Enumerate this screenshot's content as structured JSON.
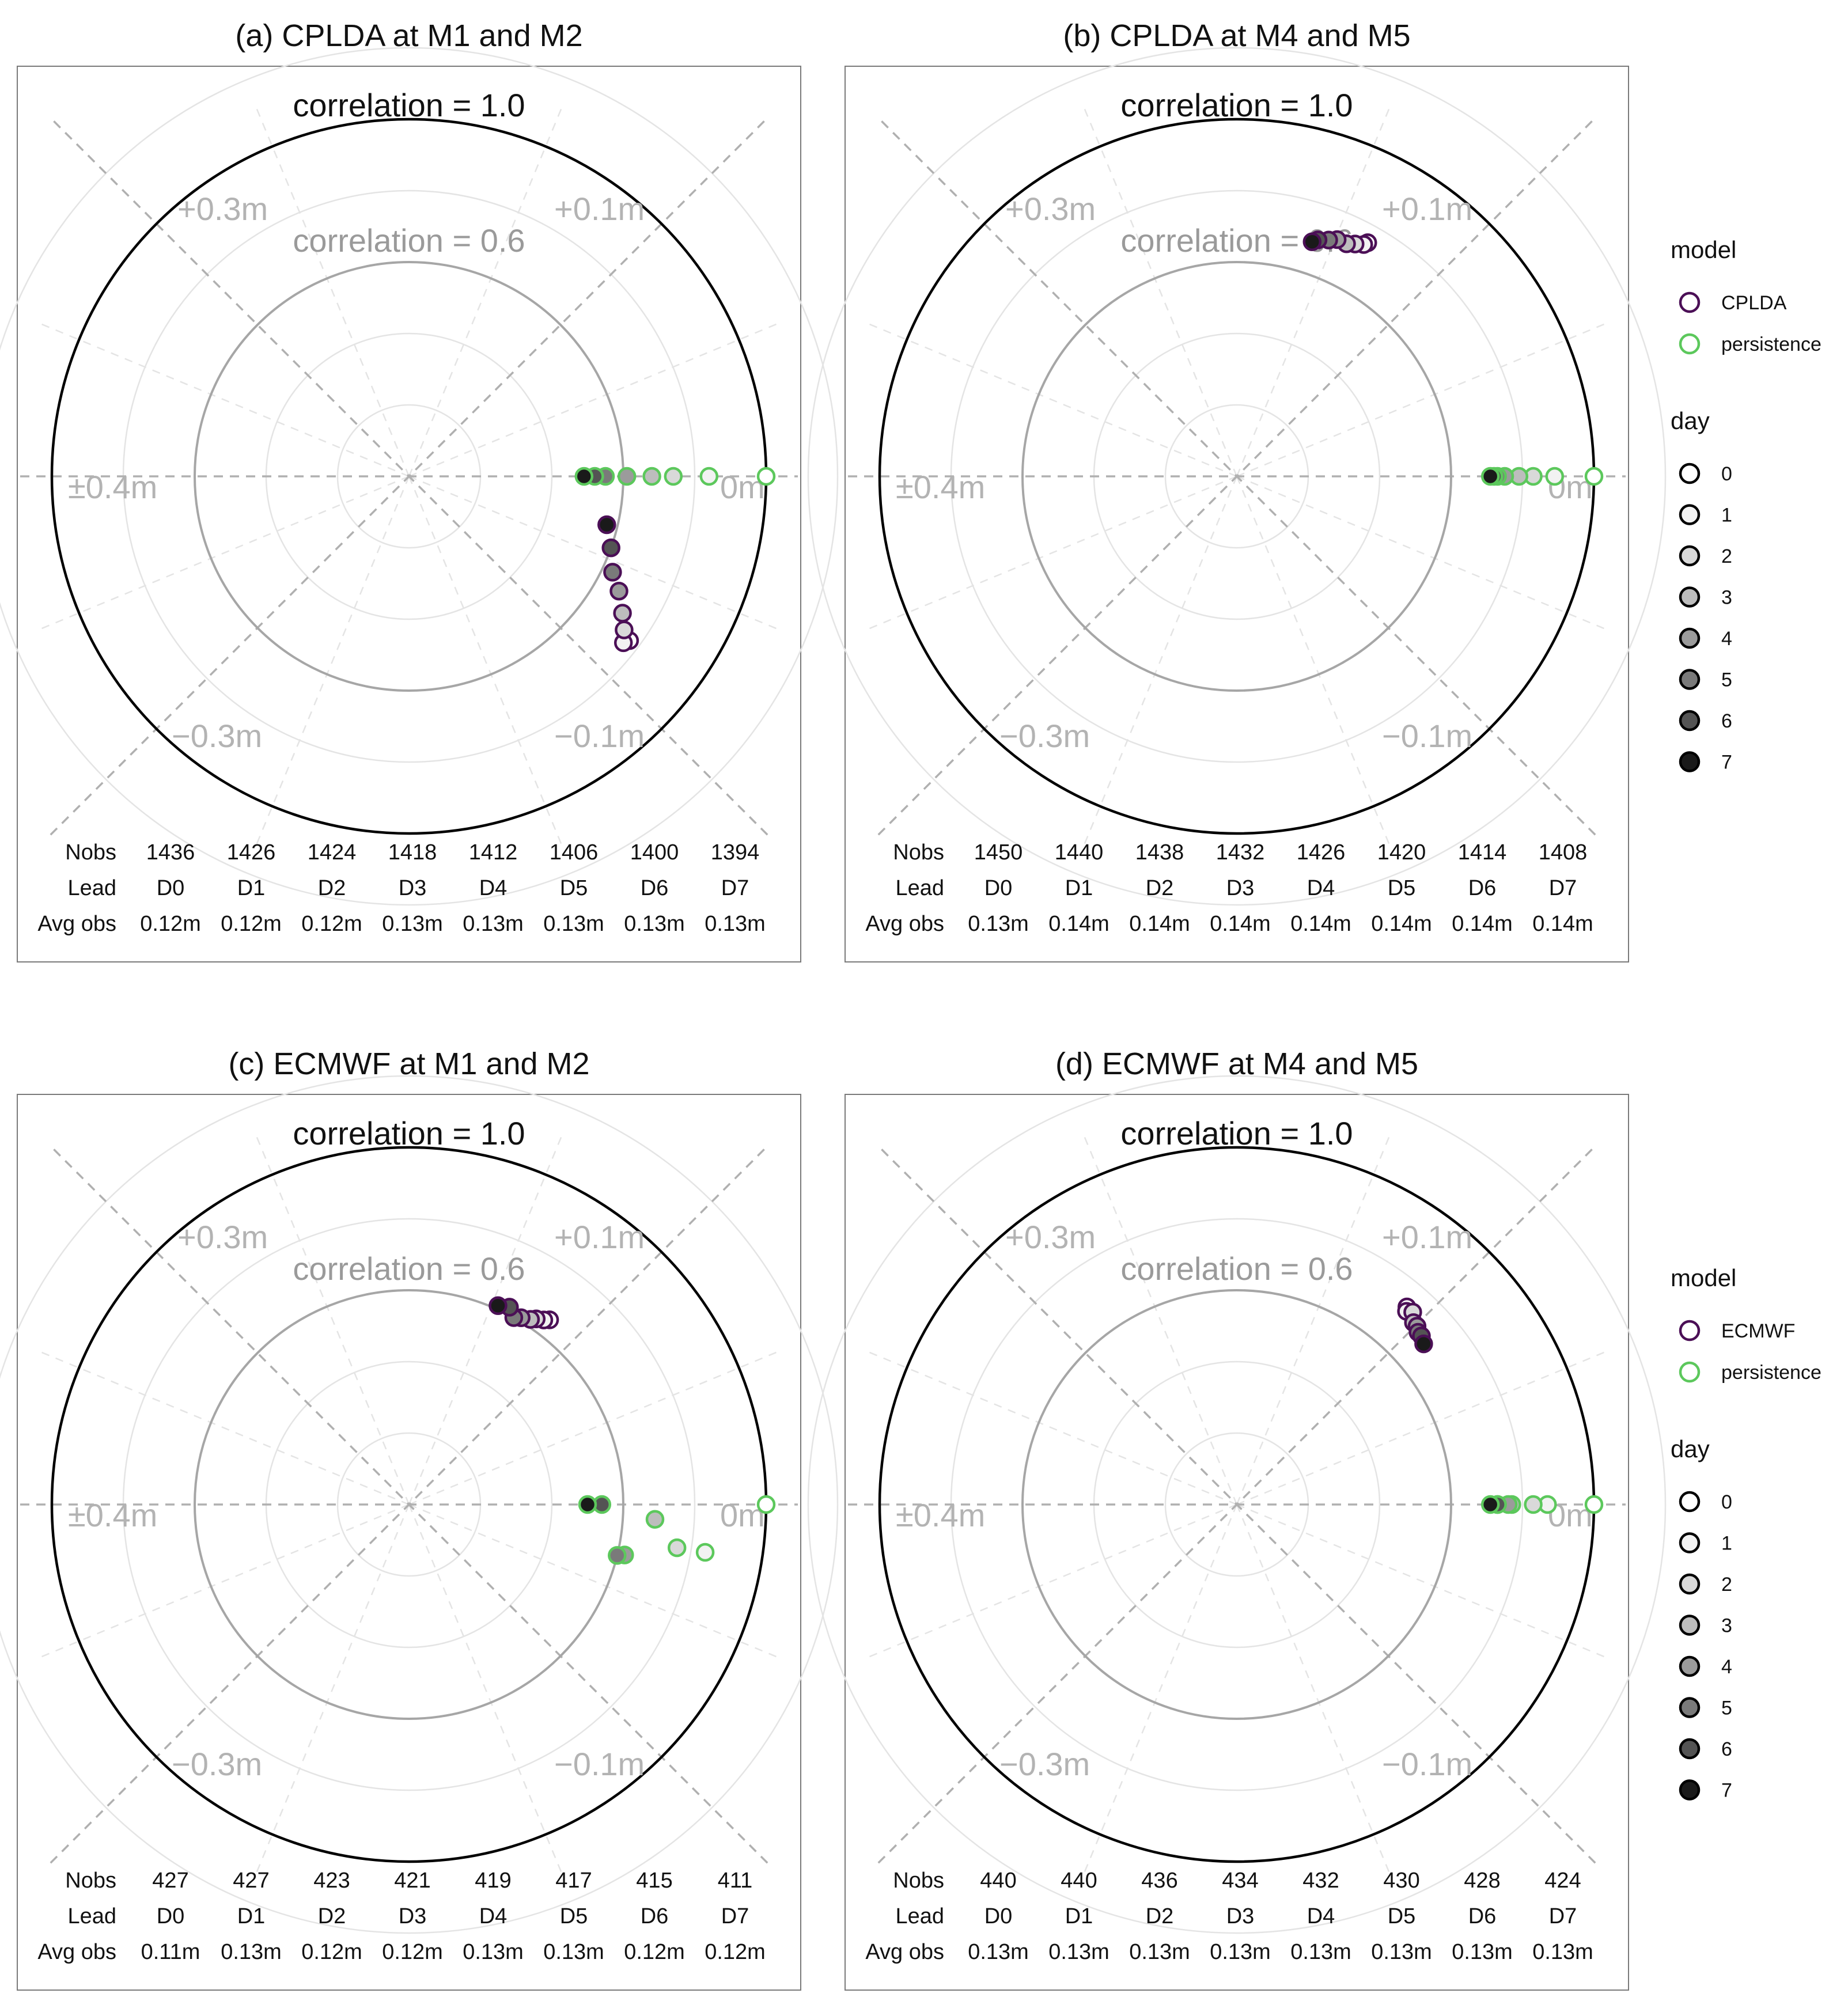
{
  "colors": {
    "model": "#4b0f56",
    "persistence": "#5cc85c",
    "grid": "#e4e4e4",
    "spoke": "#b0b0b0",
    "ring06": "#a6a6a6",
    "ring10": "#000000"
  },
  "chart_data": [
    {
      "type": "scatter",
      "polar": true,
      "title": "(a) CPLDA at M1 and M2",
      "corr1_label": "correlation = 1.0",
      "corr06_label": "correlation = 0.6",
      "bias_labels": {
        "tl": "+0.3m",
        "tr": "+0.1m",
        "l": "±0.4m",
        "r": "0m",
        "bl": "−0.3m",
        "br": "−0.1m"
      },
      "table_headers": [
        "Nobs",
        "Lead",
        "Avg obs"
      ],
      "nobs": [
        "1436",
        "1426",
        "1424",
        "1418",
        "1412",
        "1406",
        "1400",
        "1394"
      ],
      "lead": [
        "D0",
        "D1",
        "D2",
        "D3",
        "D4",
        "D5",
        "D6",
        "D7"
      ],
      "avg_obs": [
        "0.12m",
        "0.12m",
        "0.12m",
        "0.13m",
        "0.13m",
        "0.13m",
        "0.13m",
        "0.13m"
      ],
      "series": [
        {
          "name": "CPLDA",
          "key": "model",
          "points": [
            {
              "day": 0,
              "r": 0.77,
              "angle": -0.64
            },
            {
              "day": 1,
              "r": 0.76,
              "angle": -0.66
            },
            {
              "day": 2,
              "r": 0.74,
              "angle": -0.62
            },
            {
              "day": 3,
              "r": 0.71,
              "angle": -0.57
            },
            {
              "day": 4,
              "r": 0.67,
              "angle": -0.5
            },
            {
              "day": 5,
              "r": 0.63,
              "angle": -0.44
            },
            {
              "day": 6,
              "r": 0.6,
              "angle": -0.34
            },
            {
              "day": 7,
              "r": 0.57,
              "angle": -0.24
            }
          ]
        },
        {
          "name": "persistence",
          "key": "persistence",
          "points": [
            {
              "day": 0,
              "r": 1.0,
              "angle": 0.0
            },
            {
              "day": 1,
              "r": 0.84,
              "angle": 0.0
            },
            {
              "day": 2,
              "r": 0.74,
              "angle": 0.0
            },
            {
              "day": 3,
              "r": 0.68,
              "angle": 0.0
            },
            {
              "day": 4,
              "r": 0.61,
              "angle": 0.0
            },
            {
              "day": 5,
              "r": 0.55,
              "angle": 0.0
            },
            {
              "day": 6,
              "r": 0.52,
              "angle": 0.0
            },
            {
              "day": 7,
              "r": 0.49,
              "angle": 0.0
            }
          ]
        }
      ]
    },
    {
      "type": "scatter",
      "polar": true,
      "title": "(b) CPLDA at M4 and M5",
      "corr1_label": "correlation = 1.0",
      "corr06_label": "correlation = 0.6",
      "bias_labels": {
        "tl": "+0.3m",
        "tr": "+0.1m",
        "l": "±0.4m",
        "r": "0m",
        "bl": "−0.3m",
        "br": "−0.1m"
      },
      "table_headers": [
        "Nobs",
        "Lead",
        "Avg obs"
      ],
      "nobs": [
        "1450",
        "1440",
        "1438",
        "1432",
        "1426",
        "1420",
        "1414",
        "1408"
      ],
      "lead": [
        "D0",
        "D1",
        "D2",
        "D3",
        "D4",
        "D5",
        "D6",
        "D7"
      ],
      "avg_obs": [
        "0.13m",
        "0.14m",
        "0.14m",
        "0.14m",
        "0.14m",
        "0.14m",
        "0.14m",
        "0.14m"
      ],
      "series": [
        {
          "name": "CPLDA",
          "key": "model",
          "points": [
            {
              "day": 0,
              "r": 0.75,
              "angle": 1.06
            },
            {
              "day": 1,
              "r": 0.74,
              "angle": 1.07
            },
            {
              "day": 2,
              "r": 0.73,
              "angle": 1.1
            },
            {
              "day": 3,
              "r": 0.72,
              "angle": 1.13
            },
            {
              "day": 4,
              "r": 0.72,
              "angle": 1.17
            },
            {
              "day": 5,
              "r": 0.71,
              "angle": 1.2
            },
            {
              "day": 6,
              "r": 0.7,
              "angle": 1.24
            },
            {
              "day": 7,
              "r": 0.69,
              "angle": 1.26
            }
          ]
        },
        {
          "name": "persistence",
          "key": "persistence",
          "points": [
            {
              "day": 0,
              "r": 1.0,
              "angle": 0.0
            },
            {
              "day": 1,
              "r": 0.89,
              "angle": 0.0
            },
            {
              "day": 2,
              "r": 0.83,
              "angle": 0.0
            },
            {
              "day": 3,
              "r": 0.79,
              "angle": 0.0
            },
            {
              "day": 4,
              "r": 0.75,
              "angle": 0.0
            },
            {
              "day": 5,
              "r": 0.73,
              "angle": 0.0
            },
            {
              "day": 6,
              "r": 0.72,
              "angle": 0.0
            },
            {
              "day": 7,
              "r": 0.71,
              "angle": 0.0
            }
          ]
        }
      ]
    },
    {
      "type": "scatter",
      "polar": true,
      "title": "(c) ECMWF at M1 and M2",
      "corr1_label": "correlation = 1.0",
      "corr06_label": "correlation = 0.6",
      "bias_labels": {
        "tl": "+0.3m",
        "tr": "+0.1m",
        "l": "±0.4m",
        "r": "0m",
        "bl": "−0.3m",
        "br": "−0.1m"
      },
      "table_headers": [
        "Nobs",
        "Lead",
        "Avg obs"
      ],
      "nobs": [
        "427",
        "427",
        "423",
        "421",
        "419",
        "417",
        "415",
        "411"
      ],
      "lead": [
        "D0",
        "D1",
        "D2",
        "D3",
        "D4",
        "D5",
        "D6",
        "D7"
      ],
      "avg_obs": [
        "0.11m",
        "0.13m",
        "0.12m",
        "0.12m",
        "0.13m",
        "0.13m",
        "0.12m",
        "0.12m"
      ],
      "series": [
        {
          "name": "ECMWF",
          "key": "model",
          "points": [
            {
              "day": 0,
              "r": 0.65,
              "angle": 0.92
            },
            {
              "day": 1,
              "r": 0.64,
              "angle": 0.94
            },
            {
              "day": 2,
              "r": 0.63,
              "angle": 0.97
            },
            {
              "day": 3,
              "r": 0.62,
              "angle": 0.99
            },
            {
              "day": 4,
              "r": 0.61,
              "angle": 1.03
            },
            {
              "day": 5,
              "r": 0.6,
              "angle": 1.06
            },
            {
              "day": 6,
              "r": 0.62,
              "angle": 1.1
            },
            {
              "day": 7,
              "r": 0.61,
              "angle": 1.15
            }
          ]
        },
        {
          "name": "persistence",
          "key": "persistence",
          "points": [
            {
              "day": 0,
              "r": 1.0,
              "angle": 0.0
            },
            {
              "day": 1,
              "r": 0.84,
              "angle": -0.16
            },
            {
              "day": 2,
              "r": 0.76,
              "angle": -0.16
            },
            {
              "day": 3,
              "r": 0.69,
              "angle": -0.06
            },
            {
              "day": 4,
              "r": 0.62,
              "angle": -0.23
            },
            {
              "day": 5,
              "r": 0.6,
              "angle": -0.24
            },
            {
              "day": 6,
              "r": 0.54,
              "angle": 0.0
            },
            {
              "day": 7,
              "r": 0.5,
              "angle": 0.0
            }
          ]
        }
      ]
    },
    {
      "type": "scatter",
      "polar": true,
      "title": "(d) ECMWF at M4 and M5",
      "corr1_label": "correlation = 1.0",
      "corr06_label": "correlation = 0.6",
      "bias_labels": {
        "tl": "+0.3m",
        "tr": "+0.1m",
        "l": "±0.4m",
        "r": "0m",
        "bl": "−0.3m",
        "br": "−0.1m"
      },
      "table_headers": [
        "Nobs",
        "Lead",
        "Avg obs"
      ],
      "nobs": [
        "440",
        "440",
        "436",
        "434",
        "432",
        "430",
        "428",
        "424"
      ],
      "lead": [
        "D0",
        "D1",
        "D2",
        "D3",
        "D4",
        "D5",
        "D6",
        "D7"
      ],
      "avg_obs": [
        "0.13m",
        "0.13m",
        "0.13m",
        "0.13m",
        "0.13m",
        "0.13m",
        "0.13m",
        "0.13m"
      ],
      "series": [
        {
          "name": "ECMWF",
          "key": "model",
          "points": [
            {
              "day": 0,
              "r": 0.73,
              "angle": 0.86
            },
            {
              "day": 1,
              "r": 0.72,
              "angle": 0.85
            },
            {
              "day": 2,
              "r": 0.73,
              "angle": 0.83
            },
            {
              "day": 3,
              "r": 0.71,
              "angle": 0.8
            },
            {
              "day": 4,
              "r": 0.71,
              "angle": 0.78
            },
            {
              "day": 5,
              "r": 0.7,
              "angle": 0.76
            },
            {
              "day": 6,
              "r": 0.7,
              "angle": 0.74
            },
            {
              "day": 7,
              "r": 0.69,
              "angle": 0.71
            }
          ]
        },
        {
          "name": "persistence",
          "key": "persistence",
          "points": [
            {
              "day": 0,
              "r": 1.0,
              "angle": 0.0
            },
            {
              "day": 1,
              "r": 0.87,
              "angle": 0.0
            },
            {
              "day": 2,
              "r": 0.83,
              "angle": 0.0
            },
            {
              "day": 3,
              "r": 0.77,
              "angle": 0.0
            },
            {
              "day": 4,
              "r": 0.76,
              "angle": 0.0
            },
            {
              "day": 5,
              "r": 0.73,
              "angle": 0.0
            },
            {
              "day": 6,
              "r": 0.73,
              "angle": 0.0
            },
            {
              "day": 7,
              "r": 0.71,
              "angle": 0.0
            }
          ]
        }
      ]
    }
  ],
  "legends": [
    {
      "model_title": "model",
      "model_items": [
        {
          "label": "CPLDA",
          "key": "model"
        },
        {
          "label": "persistence",
          "key": "persistence"
        }
      ],
      "day_title": "day",
      "day_items": [
        "0",
        "1",
        "2",
        "3",
        "4",
        "5",
        "6",
        "7"
      ]
    },
    {
      "model_title": "model",
      "model_items": [
        {
          "label": "ECMWF",
          "key": "model"
        },
        {
          "label": "persistence",
          "key": "persistence"
        }
      ],
      "day_title": "day",
      "day_items": [
        "0",
        "1",
        "2",
        "3",
        "4",
        "5",
        "6",
        "7"
      ]
    }
  ],
  "day_fills": [
    "#ffffff",
    "#f2f2f2",
    "#d9d9d9",
    "#bdbdbd",
    "#9b9b9b",
    "#7a7a7a",
    "#545454",
    "#1a1a1a"
  ]
}
